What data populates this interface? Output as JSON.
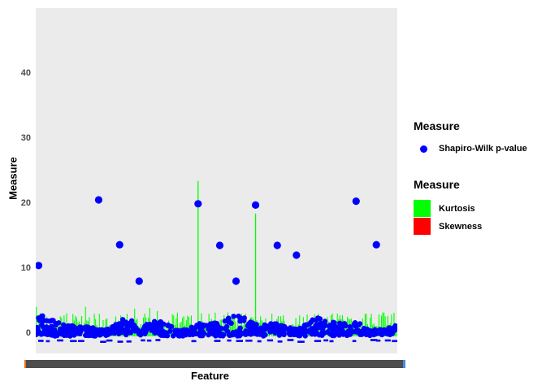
{
  "figure": {
    "bg": "#FFFFFF"
  },
  "panel": {
    "bg": "#EBEBEB"
  },
  "axes": {
    "y_title": "Measure",
    "x_title": "Feature",
    "tick_label_color": "#4D4D4D",
    "x_axis_bar": {
      "color": "#4D4D4D",
      "left_sliver": "#E8701A",
      "right_sliver": "#4B89DC"
    }
  },
  "legend_points": {
    "title": "Measure",
    "items": [
      {
        "label": "Shapiro-Wilk p-value",
        "color": "#0000FF",
        "shape": "circle"
      }
    ]
  },
  "legend_fill": {
    "title": "Measure",
    "items": [
      {
        "label": "Kurtosis",
        "color": "#00FF00"
      },
      {
        "label": "Skewness",
        "color": "#FF0000"
      }
    ]
  },
  "chart_data": {
    "type": "scatter",
    "title": "",
    "xlabel": "Feature",
    "ylabel": "Measure",
    "ylim": [
      -3,
      50
    ],
    "yticks": [
      0,
      10,
      20,
      30,
      40
    ],
    "grid": "off",
    "x_axis_note": "hundreds of overlapping feature tick labels rendered as a solid dark bar",
    "series": [
      {
        "name": "Shapiro-Wilk p-value",
        "geom": "point",
        "color": "#0000FF",
        "outliers": [
          {
            "x": 0.008,
            "y": 10.4
          },
          {
            "x": 0.174,
            "y": 20.5
          },
          {
            "x": 0.232,
            "y": 13.6
          },
          {
            "x": 0.286,
            "y": 8.0
          },
          {
            "x": 0.449,
            "y": 19.9
          },
          {
            "x": 0.509,
            "y": 13.5
          },
          {
            "x": 0.554,
            "y": 8.0
          },
          {
            "x": 0.608,
            "y": 19.7
          },
          {
            "x": 0.668,
            "y": 13.5
          },
          {
            "x": 0.721,
            "y": 12.0
          },
          {
            "x": 0.886,
            "y": 20.3
          },
          {
            "x": 0.942,
            "y": 13.6
          }
        ],
        "baseline_cluster": {
          "n": 680,
          "y_range": [
            -1.4,
            3.0
          ],
          "x_range": [
            0,
            1
          ]
        }
      },
      {
        "name": "Kurtosis",
        "geom": "spike",
        "color": "#00FF00",
        "major_spikes": [
          {
            "x": 0.449,
            "y": 23.4
          },
          {
            "x": 0.608,
            "y": 18.4
          }
        ],
        "baseline_spikes": {
          "n": 285,
          "y_range": [
            0.8,
            5.3
          ]
        }
      },
      {
        "name": "Skewness",
        "geom": "spike",
        "color": "#FF0000",
        "baseline_spikes": {
          "n": 0,
          "y_range": [
            0,
            1.2
          ]
        },
        "visibility": "hidden behind kurtosis spikes and p-value points"
      }
    ]
  }
}
